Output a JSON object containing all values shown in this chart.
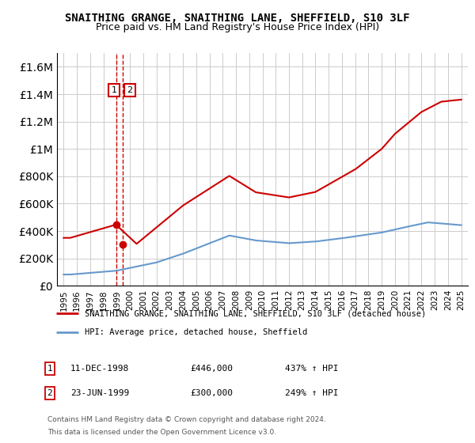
{
  "title": "SNAITHING GRANGE, SNAITHING LANE, SHEFFIELD, S10 3LF",
  "subtitle": "Price paid vs. HM Land Registry's House Price Index (HPI)",
  "legend_line1": "SNAITHING GRANGE, SNAITHING LANE, SHEFFIELD, S10 3LF (detached house)",
  "legend_line2": "HPI: Average price, detached house, Sheffield",
  "footnote1": "Contains HM Land Registry data © Crown copyright and database right 2024.",
  "footnote2": "This data is licensed under the Open Government Licence v3.0.",
  "sale1_label": "1",
  "sale1_date": "11-DEC-1998",
  "sale1_price": "£446,000",
  "sale1_hpi": "437% ↑ HPI",
  "sale2_label": "2",
  "sale2_date": "23-JUN-1999",
  "sale2_price": "£300,000",
  "sale2_hpi": "249% ↑ HPI",
  "red_color": "#cc0000",
  "blue_color": "#6699cc",
  "grid_color": "#cccccc",
  "sale1_x": 1998.95,
  "sale1_y": 446000,
  "sale2_x": 1999.48,
  "sale2_y": 300000,
  "ylim": [
    0,
    1700000
  ],
  "xlim": [
    1994.5,
    2025.5
  ]
}
